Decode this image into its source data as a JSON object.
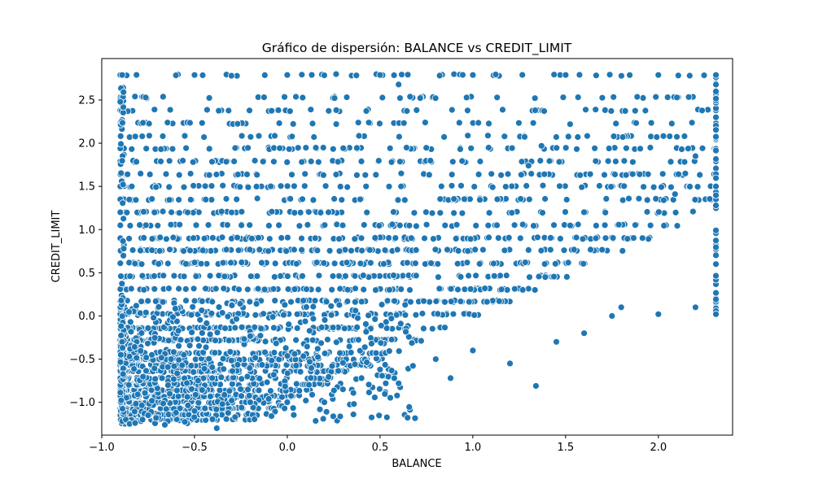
{
  "chart_data": {
    "type": "scatter",
    "title": "Gráfico de dispersión: BALANCE vs CREDIT_LIMIT",
    "xlabel": "BALANCE",
    "ylabel": "CREDIT_LIMIT",
    "xlim": [
      -1.0,
      2.4
    ],
    "ylim": [
      -1.38,
      2.98
    ],
    "xticks": [
      "−1.0",
      "−0.5",
      "0.0",
      "0.5",
      "1.0",
      "1.5",
      "2.0"
    ],
    "xtick_values": [
      -1.0,
      -0.5,
      0.0,
      0.5,
      1.0,
      1.5,
      2.0
    ],
    "yticks": [
      "−1.0",
      "−0.5",
      "0.0",
      "0.5",
      "1.0",
      "1.5",
      "2.0",
      "2.5"
    ],
    "ytick_values": [
      -1.0,
      -0.5,
      0.0,
      0.5,
      1.0,
      1.5,
      2.0,
      2.5
    ],
    "grid": false,
    "marker_color": "#1f77b4",
    "marker_edge_color": "#ffffff",
    "x_range": [
      -0.9,
      2.31
    ],
    "y_range": [
      -1.3,
      2.79
    ],
    "credit_limit_levels": [
      -1.2,
      -1.14,
      -1.07,
      -1.0,
      -0.93,
      -0.86,
      -0.79,
      -0.72,
      -0.64,
      -0.57,
      -0.5,
      -0.43,
      -0.28,
      -0.14,
      0.02,
      0.17,
      0.31,
      0.46,
      0.61,
      0.76,
      0.9,
      1.05,
      1.2,
      1.35,
      1.5,
      1.64,
      1.79,
      1.94,
      2.08,
      2.23,
      2.38,
      2.53,
      2.79
    ],
    "points": [
      [
        -0.89,
        -1.22
      ],
      [
        -0.87,
        -1.2
      ],
      [
        -0.85,
        -1.25
      ],
      [
        -0.82,
        -1.24
      ],
      [
        -0.78,
        -1.2
      ],
      [
        -0.75,
        -1.15
      ],
      [
        -0.66,
        -1.26
      ],
      [
        -0.6,
        -1.12
      ],
      [
        -0.5,
        -1.1
      ],
      [
        -0.38,
        -1.3
      ],
      [
        -0.35,
        -1.02
      ],
      [
        -0.3,
        -0.98
      ],
      [
        -0.2,
        -1.0
      ],
      [
        -0.1,
        -0.96
      ],
      [
        0.0,
        -1.0
      ],
      [
        0.1,
        -0.98
      ],
      [
        0.2,
        -1.0
      ],
      [
        0.3,
        -0.85
      ],
      [
        0.4,
        -0.72
      ],
      [
        0.5,
        -0.62
      ],
      [
        0.6,
        -0.78
      ],
      [
        0.8,
        -0.5
      ],
      [
        0.88,
        -0.72
      ],
      [
        1.0,
        -0.4
      ],
      [
        1.2,
        -0.55
      ],
      [
        1.34,
        -0.81
      ],
      [
        1.45,
        -0.3
      ],
      [
        1.6,
        -0.2
      ],
      [
        1.75,
        0.0
      ],
      [
        1.8,
        0.1
      ],
      [
        2.0,
        0.02
      ],
      [
        2.2,
        0.1
      ],
      [
        2.31,
        0.02
      ],
      [
        -0.89,
        2.79
      ],
      [
        -0.5,
        2.79
      ],
      [
        0.0,
        2.79
      ],
      [
        0.5,
        2.79
      ],
      [
        1.0,
        2.79
      ],
      [
        1.5,
        2.79
      ],
      [
        2.0,
        2.79
      ],
      [
        2.31,
        2.79
      ],
      [
        2.31,
        2.3
      ],
      [
        2.31,
        1.5
      ],
      [
        2.31,
        0.6
      ],
      [
        2.1,
        2.53
      ],
      [
        0.6,
        2.68
      ],
      [
        1.37,
        1.97
      ],
      [
        1.3,
        1.74
      ],
      [
        2.09,
        1.41
      ],
      [
        2.2,
        1.85
      ]
    ]
  }
}
